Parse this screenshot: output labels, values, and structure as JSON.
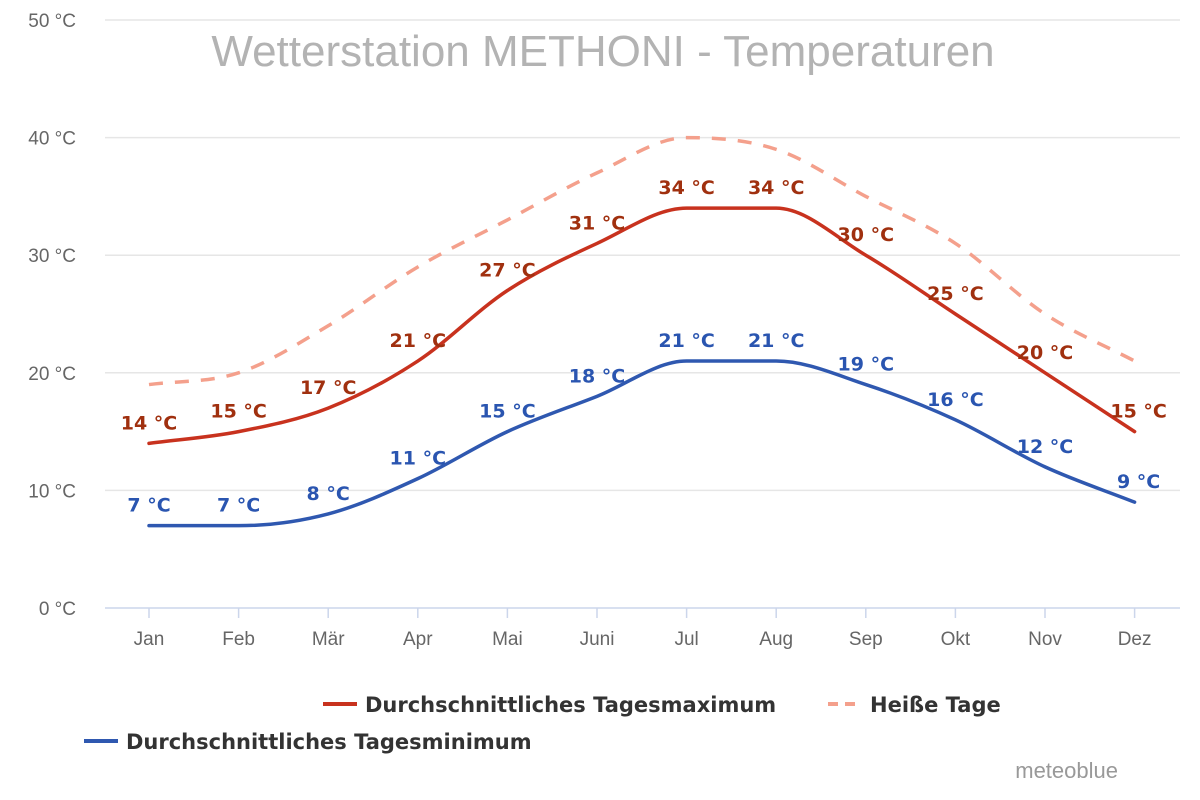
{
  "chart_data": {
    "type": "line",
    "title": "Wetterstation METHONI - Temperaturen",
    "categories": [
      "Jan",
      "Feb",
      "Mär",
      "Apr",
      "Mai",
      "Juni",
      "Jul",
      "Aug",
      "Sep",
      "Okt",
      "Nov",
      "Dez"
    ],
    "ylim": [
      0,
      50
    ],
    "yticks": [
      0,
      10,
      20,
      30,
      40,
      50
    ],
    "y_unit": "°C",
    "grid": true,
    "legend_position": "bottom",
    "series": [
      {
        "name": "Durchschnittliches Tagesmaximum",
        "color": "#c8321e",
        "label_color": "#a0300f",
        "style": "solid",
        "show_labels": true,
        "values": [
          14,
          15,
          17,
          21,
          27,
          31,
          34,
          34,
          30,
          25,
          20,
          15
        ]
      },
      {
        "name": "Heiße Tage",
        "color": "#f4a08c",
        "style": "dashed",
        "show_labels": false,
        "values": [
          19,
          20,
          24,
          29,
          33,
          37,
          40,
          39,
          35,
          31,
          25,
          21
        ]
      },
      {
        "name": "Durchschnittliches Tagesminimum",
        "color": "#2f58b0",
        "label_color": "#2a55b0",
        "style": "solid",
        "show_labels": true,
        "values": [
          7,
          7,
          8,
          11,
          15,
          18,
          21,
          21,
          19,
          16,
          12,
          9
        ]
      }
    ]
  },
  "credit": "meteoblue"
}
